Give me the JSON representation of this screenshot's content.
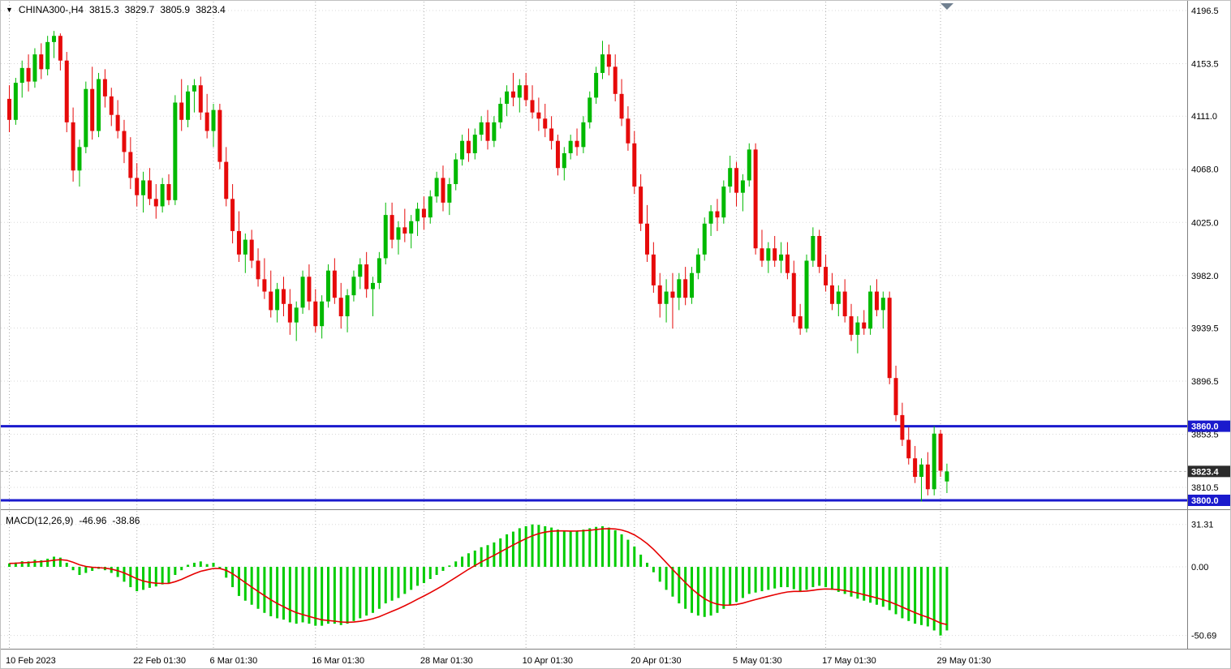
{
  "header": {
    "collapse_icon": "▼",
    "symbol": "CHINA300-,H4",
    "open": "3815.3",
    "high": "3829.7",
    "low": "3805.9",
    "close": "3823.4"
  },
  "indicator_header": {
    "name": "MACD(12,26,9)",
    "macd": "-46.96",
    "signal": "-38.86"
  },
  "colors": {
    "background": "#ffffff",
    "bull": "#00B900",
    "bear": "#E60A0A",
    "macd_histogram": "#00CC00",
    "macd_signal": "#E60000",
    "level_line": "#1A1ACD",
    "current_badge_bg": "#2B2B2B",
    "badge_text": "#ffffff",
    "axis_text": "#000000",
    "grid_vertical": "#ABABAB",
    "grid_horizontal": "#D8D8D8",
    "divider": "#808080",
    "current_price_line": "#B8B8B8",
    "shift_marker": "#708090"
  },
  "chart_data": {
    "type": "candlestick",
    "title": "CHINA300-,H4",
    "symbol": "CHINA300-",
    "timeframe": "H4",
    "price_range": [
      3800.0,
      4196.5
    ],
    "y_ticks": [
      "4196.5",
      "4153.5",
      "4111.0",
      "4068.0",
      "4025.0",
      "3982.0",
      "3939.5",
      "3896.5",
      "3853.5",
      "3810.5"
    ],
    "x_ticks": [
      {
        "label": "10 Feb 2023",
        "index": 0
      },
      {
        "label": "22 Feb 01:30",
        "index": 20
      },
      {
        "label": "6 Mar 01:30",
        "index": 32
      },
      {
        "label": "16 Mar 01:30",
        "index": 48
      },
      {
        "label": "28 Mar 01:30",
        "index": 65
      },
      {
        "label": "10 Apr 01:30",
        "index": 81
      },
      {
        "label": "20 Apr 01:30",
        "index": 98
      },
      {
        "label": "5 May 01:30",
        "index": 114
      },
      {
        "label": "17 May 01:30",
        "index": 128
      },
      {
        "label": "29 May 01:30",
        "index": 146
      }
    ],
    "horizontal_levels": [
      {
        "price": 3860.0,
        "label": "3860.0"
      },
      {
        "price": 3800.0,
        "label": "3800.0"
      }
    ],
    "current_price": {
      "value": 3823.4,
      "label": "3823.4"
    },
    "candles": [
      [
        4125,
        4136,
        4098,
        4108
      ],
      [
        4108,
        4142,
        4104,
        4138
      ],
      [
        4138,
        4156,
        4126,
        4150
      ],
      [
        4150,
        4161,
        4131,
        4139
      ],
      [
        4139,
        4166,
        4134,
        4161
      ],
      [
        4161,
        4170,
        4141,
        4149
      ],
      [
        4149,
        4176,
        4144,
        4171
      ],
      [
        4171,
        4180,
        4158,
        4176
      ],
      [
        4176,
        4178,
        4148,
        4156
      ],
      [
        4156,
        4163,
        4098,
        4106
      ],
      [
        4106,
        4118,
        4058,
        4067
      ],
      [
        4067,
        4092,
        4054,
        4086
      ],
      [
        4086,
        4139,
        4081,
        4133
      ],
      [
        4133,
        4151,
        4092,
        4099
      ],
      [
        4099,
        4146,
        4094,
        4141
      ],
      [
        4141,
        4149,
        4118,
        4127
      ],
      [
        4127,
        4134,
        4103,
        4112
      ],
      [
        4112,
        4124,
        4093,
        4099
      ],
      [
        4099,
        4108,
        4073,
        4082
      ],
      [
        4082,
        4094,
        4052,
        4061
      ],
      [
        4061,
        4073,
        4038,
        4047
      ],
      [
        4047,
        4066,
        4033,
        4059
      ],
      [
        4059,
        4069,
        4039,
        4044
      ],
      [
        4044,
        4056,
        4028,
        4038
      ],
      [
        4038,
        4061,
        4033,
        4056
      ],
      [
        4056,
        4064,
        4039,
        4043
      ],
      [
        4043,
        4128,
        4039,
        4122
      ],
      [
        4122,
        4141,
        4099,
        4108
      ],
      [
        4108,
        4136,
        4102,
        4131
      ],
      [
        4131,
        4141,
        4114,
        4136
      ],
      [
        4136,
        4143,
        4108,
        4114
      ],
      [
        4114,
        4129,
        4093,
        4099
      ],
      [
        4099,
        4121,
        4086,
        4116
      ],
      [
        4116,
        4121,
        4068,
        4074
      ],
      [
        4074,
        4086,
        4038,
        4044
      ],
      [
        4044,
        4056,
        4008,
        4018
      ],
      [
        4018,
        4034,
        3993,
        3999
      ],
      [
        3999,
        4016,
        3984,
        4011
      ],
      [
        4011,
        4019,
        3988,
        3994
      ],
      [
        3994,
        4004,
        3973,
        3979
      ],
      [
        3979,
        3996,
        3963,
        3969
      ],
      [
        3969,
        3986,
        3948,
        3954
      ],
      [
        3954,
        3976,
        3944,
        3971
      ],
      [
        3971,
        3981,
        3949,
        3959
      ],
      [
        3959,
        3971,
        3934,
        3944
      ],
      [
        3944,
        3961,
        3929,
        3956
      ],
      [
        3956,
        3986,
        3951,
        3981
      ],
      [
        3981,
        3991,
        3954,
        3961
      ],
      [
        3961,
        3971,
        3936,
        3941
      ],
      [
        3941,
        3966,
        3931,
        3961
      ],
      [
        3961,
        3991,
        3956,
        3986
      ],
      [
        3986,
        3996,
        3959,
        3964
      ],
      [
        3964,
        3976,
        3939,
        3949
      ],
      [
        3949,
        3971,
        3936,
        3966
      ],
      [
        3966,
        3986,
        3961,
        3981
      ],
      [
        3981,
        3996,
        3971,
        3991
      ],
      [
        3991,
        4001,
        3964,
        3971
      ],
      [
        3971,
        3981,
        3949,
        3976
      ],
      [
        3976,
        4001,
        3971,
        3996
      ],
      [
        3996,
        4041,
        3991,
        4031
      ],
      [
        4031,
        4041,
        4004,
        4011
      ],
      [
        4011,
        4026,
        3999,
        4021
      ],
      [
        4021,
        4036,
        4009,
        4016
      ],
      [
        4016,
        4031,
        4004,
        4026
      ],
      [
        4026,
        4041,
        4014,
        4036
      ],
      [
        4036,
        4046,
        4019,
        4029
      ],
      [
        4029,
        4051,
        4024,
        4046
      ],
      [
        4046,
        4066,
        4041,
        4061
      ],
      [
        4061,
        4071,
        4034,
        4041
      ],
      [
        4041,
        4061,
        4031,
        4056
      ],
      [
        4056,
        4081,
        4051,
        4076
      ],
      [
        4076,
        4096,
        4071,
        4091
      ],
      [
        4091,
        4101,
        4074,
        4081
      ],
      [
        4081,
        4101,
        4076,
        4096
      ],
      [
        4096,
        4111,
        4091,
        4106
      ],
      [
        4106,
        4116,
        4084,
        4091
      ],
      [
        4091,
        4111,
        4086,
        4106
      ],
      [
        4106,
        4126,
        4101,
        4121
      ],
      [
        4121,
        4136,
        4111,
        4131
      ],
      [
        4131,
        4146,
        4119,
        4126
      ],
      [
        4126,
        4141,
        4114,
        4136
      ],
      [
        4136,
        4146,
        4119,
        4124
      ],
      [
        4124,
        4136,
        4109,
        4114
      ],
      [
        4114,
        4126,
        4099,
        4109
      ],
      [
        4109,
        4121,
        4094,
        4101
      ],
      [
        4101,
        4111,
        4084,
        4091
      ],
      [
        4091,
        4096,
        4063,
        4069
      ],
      [
        4069,
        4086,
        4059,
        4081
      ],
      [
        4081,
        4096,
        4076,
        4091
      ],
      [
        4091,
        4101,
        4079,
        4086
      ],
      [
        4086,
        4111,
        4081,
        4106
      ],
      [
        4106,
        4131,
        4101,
        4126
      ],
      [
        4126,
        4151,
        4121,
        4146
      ],
      [
        4146,
        4172,
        4141,
        4161
      ],
      [
        4161,
        4169,
        4144,
        4151
      ],
      [
        4151,
        4161,
        4123,
        4129
      ],
      [
        4129,
        4141,
        4103,
        4109
      ],
      [
        4109,
        4119,
        4083,
        4089
      ],
      [
        4089,
        4099,
        4048,
        4054
      ],
      [
        4054,
        4064,
        4018,
        4024
      ],
      [
        4024,
        4039,
        3993,
        3999
      ],
      [
        3999,
        4009,
        3968,
        3974
      ],
      [
        3974,
        3984,
        3948,
        3959
      ],
      [
        3959,
        3979,
        3944,
        3969
      ],
      [
        3969,
        3984,
        3939,
        3964
      ],
      [
        3964,
        3984,
        3954,
        3979
      ],
      [
        3979,
        3989,
        3958,
        3964
      ],
      [
        3964,
        3989,
        3959,
        3984
      ],
      [
        3984,
        4004,
        3979,
        3999
      ],
      [
        3999,
        4029,
        3994,
        4024
      ],
      [
        4024,
        4039,
        4014,
        4034
      ],
      [
        4034,
        4044,
        4018,
        4029
      ],
      [
        4029,
        4059,
        4024,
        4054
      ],
      [
        4054,
        4079,
        4049,
        4069
      ],
      [
        4069,
        4074,
        4038,
        4049
      ],
      [
        4049,
        4064,
        4034,
        4059
      ],
      [
        4059,
        4089,
        4054,
        4084
      ],
      [
        4084,
        4089,
        3999,
        4004
      ],
      [
        4004,
        4019,
        3989,
        3994
      ],
      [
        3994,
        4009,
        3984,
        4004
      ],
      [
        4004,
        4014,
        3989,
        3994
      ],
      [
        3994,
        4009,
        3984,
        3999
      ],
      [
        3999,
        4009,
        3979,
        3984
      ],
      [
        3984,
        3994,
        3944,
        3949
      ],
      [
        3949,
        3959,
        3934,
        3939
      ],
      [
        3939,
        3999,
        3936,
        3994
      ],
      [
        3994,
        4021,
        3989,
        4014
      ],
      [
        4014,
        4019,
        3984,
        3989
      ],
      [
        3989,
        3999,
        3969,
        3974
      ],
      [
        3974,
        3984,
        3954,
        3959
      ],
      [
        3959,
        3974,
        3949,
        3969
      ],
      [
        3969,
        3979,
        3944,
        3949
      ],
      [
        3949,
        3959,
        3929,
        3934
      ],
      [
        3934,
        3949,
        3919,
        3944
      ],
      [
        3944,
        3954,
        3934,
        3939
      ],
      [
        3939,
        3974,
        3934,
        3969
      ],
      [
        3969,
        3979,
        3949,
        3954
      ],
      [
        3954,
        3969,
        3939,
        3964
      ],
      [
        3964,
        3969,
        3894,
        3899
      ],
      [
        3899,
        3909,
        3864,
        3869
      ],
      [
        3869,
        3879,
        3844,
        3849
      ],
      [
        3849,
        3859,
        3829,
        3834
      ],
      [
        3834,
        3844,
        3814,
        3819
      ],
      [
        3819,
        3834,
        3799,
        3829
      ],
      [
        3829,
        3839,
        3804,
        3809
      ],
      [
        3809,
        3860,
        3804,
        3854
      ],
      [
        3854,
        3857,
        3819,
        3824
      ],
      [
        3815.3,
        3829.7,
        3805.9,
        3823.4
      ]
    ],
    "macd": {
      "type": "bar+line",
      "params": "12,26,9",
      "signal_period": 9,
      "range": [
        -50.69,
        31.31
      ],
      "y_ticks": [
        {
          "label": "31.31",
          "value": 31.31
        },
        {
          "label": "0.00",
          "value": 0.0
        },
        {
          "label": "-50.69",
          "value": -50.69
        }
      ],
      "current_macd": -46.96,
      "current_signal": -38.86,
      "histogram": [
        2.5,
        3.2,
        4.1,
        4.0,
        5.2,
        4.8,
        6.0,
        7.5,
        6.8,
        3.0,
        -2.5,
        -6.0,
        -4.5,
        -3.0,
        -1.5,
        -2.5,
        -4.5,
        -7.5,
        -11.0,
        -15.0,
        -18.0,
        -17.0,
        -15.5,
        -14.5,
        -13.0,
        -12.0,
        -6.0,
        -2.5,
        1.5,
        3.0,
        4.0,
        2.0,
        3.0,
        -1.5,
        -8.0,
        -15.0,
        -21.5,
        -25.0,
        -28.0,
        -31.0,
        -34.0,
        -36.5,
        -38.0,
        -39.0,
        -41.0,
        -42.0,
        -41.0,
        -42.0,
        -43.5,
        -43.5,
        -42.0,
        -42.0,
        -43.0,
        -42.0,
        -40.0,
        -38.0,
        -36.0,
        -34.0,
        -31.0,
        -27.0,
        -25.0,
        -23.0,
        -20.0,
        -17.0,
        -14.0,
        -12.0,
        -9.0,
        -6.0,
        -3.0,
        1.0,
        4.0,
        7.5,
        10.0,
        12.0,
        14.5,
        16.0,
        18.0,
        21.0,
        24.0,
        26.0,
        28.5,
        30.0,
        31.31,
        31.0,
        30.0,
        29.0,
        27.5,
        26.5,
        26.0,
        26.5,
        27.5,
        28.5,
        29.5,
        30.0,
        29.0,
        27.0,
        24.0,
        20.0,
        15.0,
        9.0,
        3.0,
        -4.0,
        -11.0,
        -17.0,
        -22.0,
        -27.0,
        -31.0,
        -34.0,
        -36.0,
        -37.0,
        -36.0,
        -34.0,
        -31.0,
        -28.0,
        -26.0,
        -23.0,
        -20.0,
        -19.0,
        -18.0,
        -17.0,
        -16.0,
        -15.0,
        -15.0,
        -16.5,
        -18.0,
        -17.0,
        -15.0,
        -14.0,
        -15.0,
        -17.0,
        -18.5,
        -20.0,
        -22.0,
        -23.5,
        -25.0,
        -26.5,
        -28.0,
        -29.5,
        -32.0,
        -35.0,
        -38.0,
        -40.0,
        -42.0,
        -43.0,
        -44.0,
        -47.0,
        -50.69,
        -46.96
      ]
    }
  }
}
